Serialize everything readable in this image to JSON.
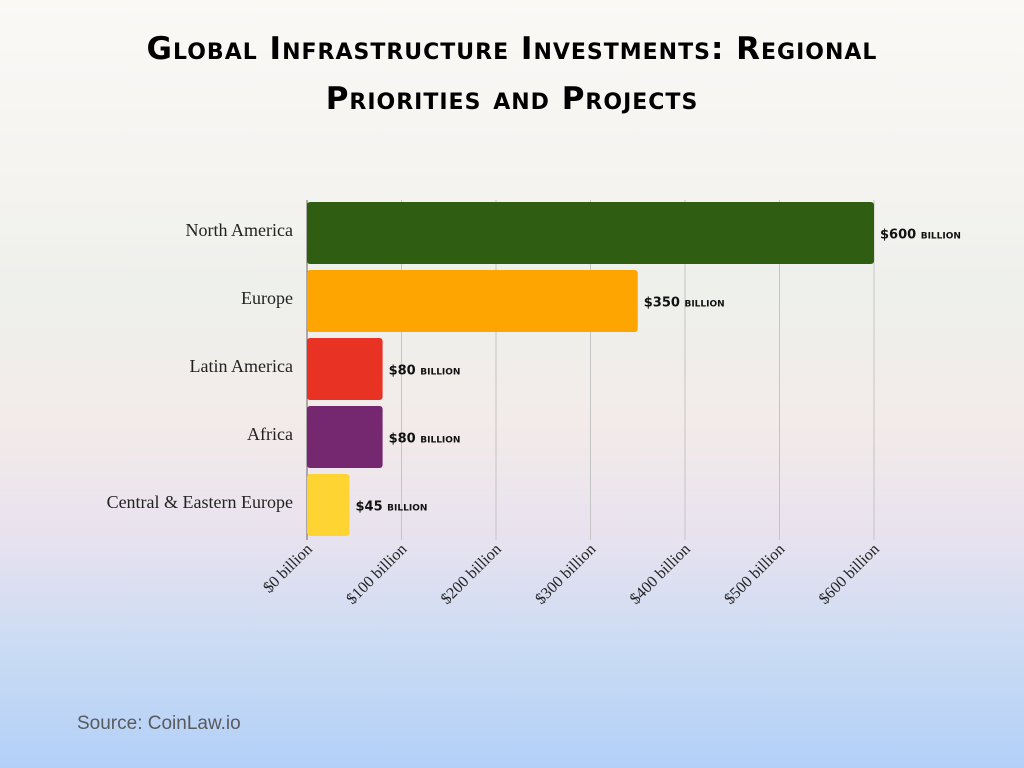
{
  "chart_data": {
    "type": "hbar",
    "title": "Global Infrastructure Investments: Regional Priorities and Projects",
    "categories": [
      "North America",
      "Europe",
      "Latin America",
      "Africa",
      "Central & Eastern Europe"
    ],
    "values": [
      600,
      350,
      80,
      80,
      45
    ],
    "value_labels": [
      "$600 billion",
      "$350 billion",
      "$80 billion",
      "$80 billion",
      "$45 billion"
    ],
    "colors": [
      "#2f5e12",
      "#ffa502",
      "#e83324",
      "#75276f",
      "#fed433"
    ],
    "xlim": [
      0,
      600
    ],
    "xticks": [
      {
        "value": 0,
        "label": "$0 billion"
      },
      {
        "value": 100,
        "label": "$100 billion"
      },
      {
        "value": 200,
        "label": "$200 billion"
      },
      {
        "value": 300,
        "label": "$300 billion"
      },
      {
        "value": 400,
        "label": "$400 billion"
      },
      {
        "value": 500,
        "label": "$500 billion"
      },
      {
        "value": 600,
        "label": "$600 billion"
      }
    ],
    "grid": true,
    "source": "Source: CoinLaw.io"
  }
}
